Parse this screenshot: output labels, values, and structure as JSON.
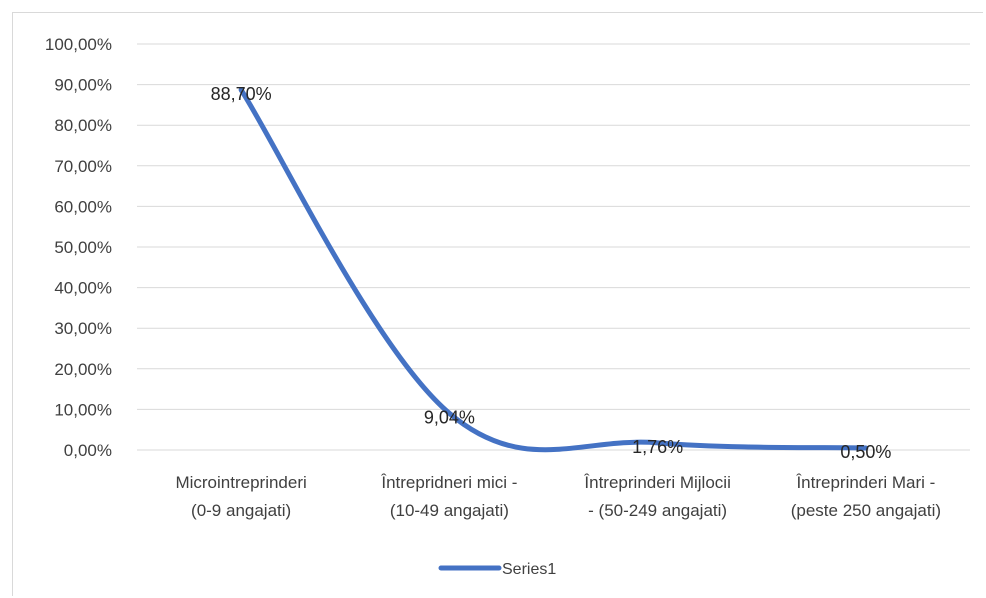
{
  "chart_data": {
    "type": "line",
    "categories": [
      [
        "Microintreprinderi",
        "(0-9 angajati)"
      ],
      [
        "Întrepridneri mici -",
        "(10-49 angajati)"
      ],
      [
        "Întreprinderi Mijlocii",
        "- (50-249 angajati)"
      ],
      [
        "Întreprinderi Mari -",
        "(peste 250 angajati)"
      ]
    ],
    "series": [
      {
        "name": "Series1",
        "values": [
          88.7,
          9.04,
          1.76,
          0.5
        ],
        "labels": [
          "88,70%",
          "9,04%",
          "1,76%",
          "0,50%"
        ],
        "color": "#4472c4"
      }
    ],
    "ylim": [
      0,
      100
    ],
    "ytick_labels": [
      "0,00%",
      "10,00%",
      "20,00%",
      "30,00%",
      "40,00%",
      "50,00%",
      "60,00%",
      "70,00%",
      "80,00%",
      "90,00%",
      "100,00%"
    ],
    "grid": true,
    "gridline_color": "#d9d9d9",
    "legend_position": "bottom",
    "smooth": true
  }
}
